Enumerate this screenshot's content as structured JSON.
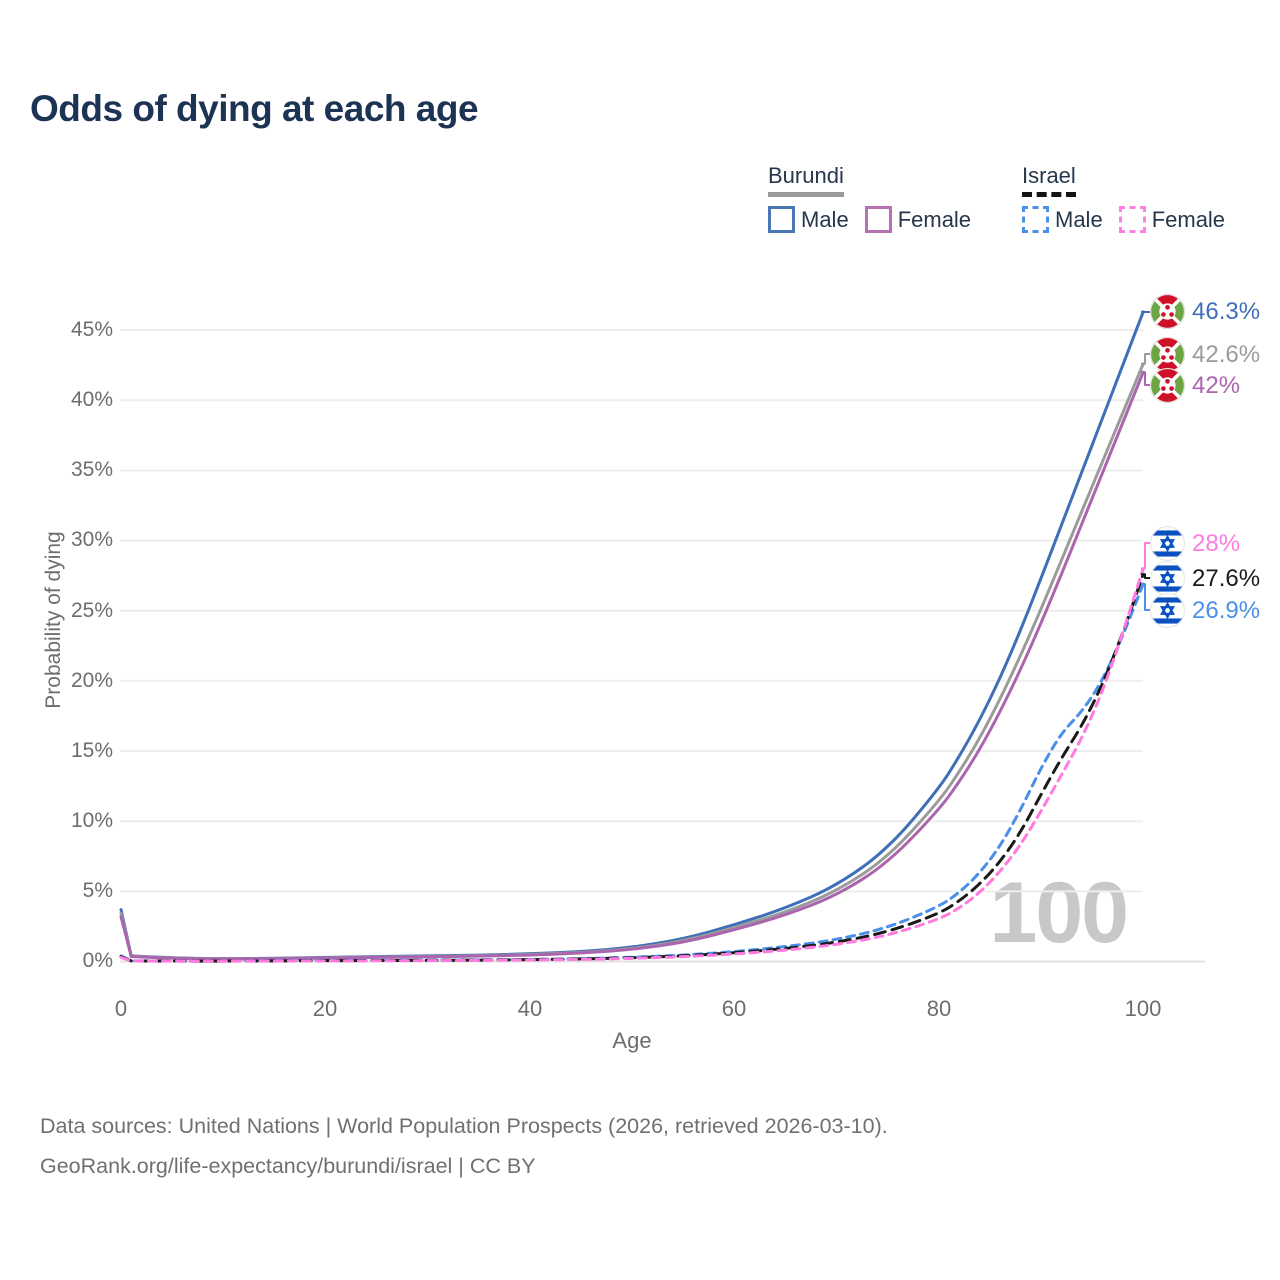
{
  "title": "Odds of dying at each age",
  "legend": {
    "burundi": {
      "label": "Burundi",
      "male": "Male",
      "female": "Female"
    },
    "israel": {
      "label": "Israel",
      "male": "Male",
      "female": "Female"
    }
  },
  "y_axis": {
    "label": "Probability of dying",
    "ticks": [
      "0%",
      "5%",
      "10%",
      "15%",
      "20%",
      "25%",
      "30%",
      "35%",
      "40%",
      "45%"
    ]
  },
  "x_axis": {
    "label": "Age",
    "ticks": [
      "0",
      "20",
      "40",
      "60",
      "80",
      "100"
    ]
  },
  "age_counter": "100",
  "end_labels": [
    {
      "value": "46.3%",
      "series": "Burundi Male",
      "flag": "burundi",
      "color": "#3e6fb7"
    },
    {
      "value": "42.6%",
      "series": "Burundi Both sexes",
      "flag": "burundi",
      "color": "#9b9b9b"
    },
    {
      "value": "42%",
      "series": "Burundi Female",
      "flag": "burundi",
      "color": "#ab64ae"
    },
    {
      "value": "28%",
      "series": "Israel Female",
      "flag": "israel",
      "color": "#ff7be0"
    },
    {
      "value": "27.6%",
      "series": "Israel Both sexes",
      "flag": "israel",
      "color": "#1a1a1a"
    },
    {
      "value": "26.9%",
      "series": "Israel Male",
      "flag": "israel",
      "color": "#4a8fe8"
    }
  ],
  "footer": {
    "line1": "Data sources: United Nations | World Population Prospects (2026, retrieved 2026-03-10).",
    "line2": "GeoRank.org/life-expectancy/burundi/israel | CC BY"
  },
  "colors": {
    "title": "#1c3354",
    "burundi_male": "#3e6fb7",
    "burundi_both": "#9b9b9b",
    "burundi_female": "#ab64ae",
    "israel_male": "#4a8fe8",
    "israel_both": "#1a1a1a",
    "israel_female": "#ff7be0",
    "gridline": "#eeeeee",
    "baseline": "#e2e2e2",
    "watermark": "#c8c8c8"
  },
  "chart_data": {
    "type": "line",
    "title": "Odds of dying at each age",
    "xlabel": "Age",
    "ylabel": "Probability of dying",
    "xlim": [
      0,
      100
    ],
    "ylim": [
      0,
      46.5
    ],
    "grid": "horizontal",
    "legend_position": "top-right",
    "x": [
      0,
      1,
      5,
      10,
      15,
      20,
      25,
      30,
      35,
      40,
      45,
      50,
      55,
      60,
      65,
      70,
      75,
      80,
      82,
      84,
      86,
      88,
      90,
      92,
      94,
      96,
      98,
      100
    ],
    "series": [
      {
        "name": "Burundi Male",
        "color": "#3e6fb7",
        "dash": false,
        "end_value_pct": 46.3,
        "values": [
          3.7,
          0.4,
          0.25,
          0.2,
          0.22,
          0.3,
          0.35,
          0.4,
          0.45,
          0.55,
          0.7,
          1.0,
          1.6,
          2.6,
          3.8,
          5.4,
          8.0,
          12.3,
          14.6,
          17.2,
          20.2,
          23.6,
          27.3,
          31.1,
          34.9,
          38.7,
          42.5,
          46.3
        ]
      },
      {
        "name": "Burundi Both sexes",
        "color": "#9b9b9b",
        "dash": false,
        "end_value_pct": 42.6,
        "values": [
          3.45,
          0.38,
          0.23,
          0.19,
          0.2,
          0.27,
          0.31,
          0.36,
          0.41,
          0.5,
          0.64,
          0.9,
          1.45,
          2.4,
          3.5,
          5.0,
          7.4,
          11.4,
          13.5,
          15.9,
          18.7,
          21.8,
          25.1,
          28.6,
          32.1,
          35.6,
          39.1,
          42.6
        ]
      },
      {
        "name": "Burundi Female",
        "color": "#ab64ae",
        "dash": false,
        "end_value_pct": 42.0,
        "values": [
          3.2,
          0.36,
          0.22,
          0.18,
          0.19,
          0.25,
          0.29,
          0.33,
          0.38,
          0.46,
          0.6,
          0.85,
          1.35,
          2.25,
          3.3,
          4.7,
          7.0,
          10.8,
          12.8,
          15.1,
          17.8,
          20.8,
          24.1,
          27.6,
          31.2,
          34.8,
          38.4,
          42.0
        ]
      },
      {
        "name": "Israel Male",
        "color": "#4a8fe8",
        "dash": true,
        "end_value_pct": 26.9,
        "values": [
          0.4,
          0.05,
          0.03,
          0.03,
          0.05,
          0.08,
          0.09,
          0.1,
          0.12,
          0.15,
          0.2,
          0.3,
          0.45,
          0.7,
          1.05,
          1.55,
          2.4,
          3.9,
          4.9,
          6.3,
          8.2,
          10.8,
          13.8,
          16.3,
          17.8,
          20.0,
          23.2,
          26.9
        ]
      },
      {
        "name": "Israel Both sexes",
        "color": "#1a1a1a",
        "dash": true,
        "end_value_pct": 27.6,
        "values": [
          0.35,
          0.04,
          0.03,
          0.03,
          0.04,
          0.06,
          0.07,
          0.08,
          0.1,
          0.13,
          0.18,
          0.26,
          0.4,
          0.62,
          0.92,
          1.35,
          2.1,
          3.4,
          4.3,
          5.5,
          7.1,
          9.2,
          11.9,
          14.5,
          16.8,
          19.7,
          23.4,
          27.6
        ]
      },
      {
        "name": "Israel Female",
        "color": "#ff7be0",
        "dash": true,
        "end_value_pct": 28.0,
        "values": [
          0.3,
          0.04,
          0.02,
          0.02,
          0.03,
          0.04,
          0.05,
          0.06,
          0.08,
          0.11,
          0.15,
          0.22,
          0.34,
          0.53,
          0.8,
          1.2,
          1.85,
          3.0,
          3.8,
          4.9,
          6.4,
          8.3,
          10.7,
          13.3,
          15.9,
          19.2,
          23.4,
          28.0
        ]
      }
    ]
  }
}
